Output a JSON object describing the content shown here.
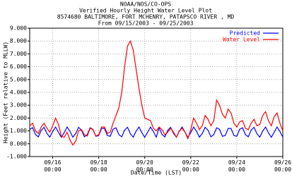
{
  "chart_data": {
    "type": "line",
    "title": "NOAA/NOS/CO-OPS",
    "subtitle": "Verified Hourly Height Water Level Plot",
    "station": "8574680 BALTIMORE, FORT MCHENRY, PATAPSCO RIVER , MD",
    "period": "From 09/15/2003 - 09/25/2003",
    "x_label": "Date/Time (LST)",
    "y_label": "Height (Feet relative to MLLW)",
    "x": [
      0,
      3,
      6,
      9,
      12,
      15,
      18,
      21,
      24,
      27,
      30,
      33,
      36,
      39,
      42,
      45,
      48,
      51,
      54,
      57,
      60,
      63,
      66,
      69,
      72,
      75,
      78,
      81,
      84,
      87,
      90,
      93,
      96,
      99,
      102,
      105,
      108,
      111,
      114,
      117,
      120,
      123,
      126,
      129,
      132,
      135,
      138,
      141,
      144,
      147,
      150,
      153,
      156,
      159,
      162,
      165,
      168,
      171,
      174,
      177,
      180,
      183,
      186,
      189,
      192,
      195,
      198,
      201,
      204,
      207,
      210,
      213,
      216,
      219,
      222,
      225,
      228,
      231,
      234,
      237,
      240,
      243,
      246,
      249,
      252,
      255,
      258,
      261,
      264
    ],
    "xlim": [
      0,
      264
    ],
    "xticks": [
      {
        "value": 24,
        "label": "09/16 00:00"
      },
      {
        "value": 72,
        "label": "09/18 00:00"
      },
      {
        "value": 120,
        "label": "09/20 00:00"
      },
      {
        "value": 168,
        "label": "09/22 00:00"
      },
      {
        "value": 216,
        "label": "09/24 00:00"
      },
      {
        "value": 264,
        "label": "09/26 00:00"
      }
    ],
    "ylim": [
      -1,
      9
    ],
    "yticks": [
      {
        "value": -1,
        "label": "-1.000"
      },
      {
        "value": 0,
        "label": "0.000"
      },
      {
        "value": 1,
        "label": "1.000"
      },
      {
        "value": 2,
        "label": "2.000"
      },
      {
        "value": 3,
        "label": "3.000"
      },
      {
        "value": 4,
        "label": "4.000"
      },
      {
        "value": 5,
        "label": "5.000"
      },
      {
        "value": 6,
        "label": "6.000"
      },
      {
        "value": 7,
        "label": "7.000"
      },
      {
        "value": 8,
        "label": "8.000"
      },
      {
        "value": 9,
        "label": "9.000"
      }
    ],
    "grid": true,
    "legend": "top-right",
    "series": [
      {
        "name": "Predicted",
        "color": "#0000ff",
        "values": [
          1.11,
          1.25,
          0.72,
          0.53,
          1.04,
          1.28,
          0.8,
          0.51,
          0.96,
          1.3,
          0.89,
          0.5,
          0.87,
          1.3,
          0.97,
          0.51,
          0.79,
          1.28,
          1.05,
          0.54,
          0.71,
          1.24,
          1.12,
          0.58,
          0.64,
          1.19,
          1.19,
          0.64,
          0.58,
          1.13,
          1.24,
          0.71,
          0.54,
          1.06,
          1.28,
          0.78,
          0.51,
          0.98,
          1.3,
          0.86,
          0.5,
          0.89,
          1.3,
          0.95,
          0.51,
          1.25,
          0.72,
          0.53,
          1.04,
          1.28,
          0.8,
          0.51,
          0.96,
          1.3,
          0.89,
          0.5,
          0.87,
          1.3,
          0.97,
          0.51,
          0.79,
          1.28,
          1.05,
          0.54,
          0.71,
          1.24,
          1.12,
          0.58,
          0.64,
          1.19,
          1.19,
          0.64,
          0.58,
          1.13,
          1.24,
          0.71,
          0.54,
          1.06,
          1.28,
          0.78,
          0.51,
          0.98,
          1.3,
          0.86,
          0.5,
          0.89,
          1.3,
          0.95,
          0.51
        ]
      },
      {
        "name": "Water Level",
        "color": "#ff0000",
        "values": [
          1.4,
          1.6,
          1.0,
          0.8,
          1.3,
          1.6,
          1.2,
          0.9,
          1.4,
          2.0,
          1.5,
          0.6,
          0.5,
          0.9,
          0.3,
          -0.1,
          0.2,
          1.0,
          1.1,
          0.7,
          0.6,
          1.2,
          1.1,
          0.6,
          0.7,
          1.3,
          1.3,
          0.8,
          0.9,
          1.6,
          2.2,
          2.8,
          4.0,
          6.0,
          7.6,
          8.0,
          7.3,
          5.8,
          4.3,
          3.0,
          2.0,
          1.9,
          1.8,
          1.2,
          1.0,
          1.3,
          1.1,
          0.7,
          0.9,
          1.2,
          0.9,
          0.5,
          1.0,
          1.2,
          0.9,
          0.4,
          1.1,
          2.0,
          1.6,
          1.1,
          1.4,
          2.2,
          1.9,
          1.4,
          1.8,
          3.4,
          3.0,
          2.3,
          2.0,
          2.7,
          2.4,
          1.6,
          1.3,
          1.7,
          1.8,
          1.2,
          1.1,
          1.6,
          1.9,
          1.4,
          1.5,
          2.2,
          2.5,
          1.8,
          1.4,
          2.1,
          2.4,
          1.6,
          1.0
        ]
      }
    ]
  }
}
